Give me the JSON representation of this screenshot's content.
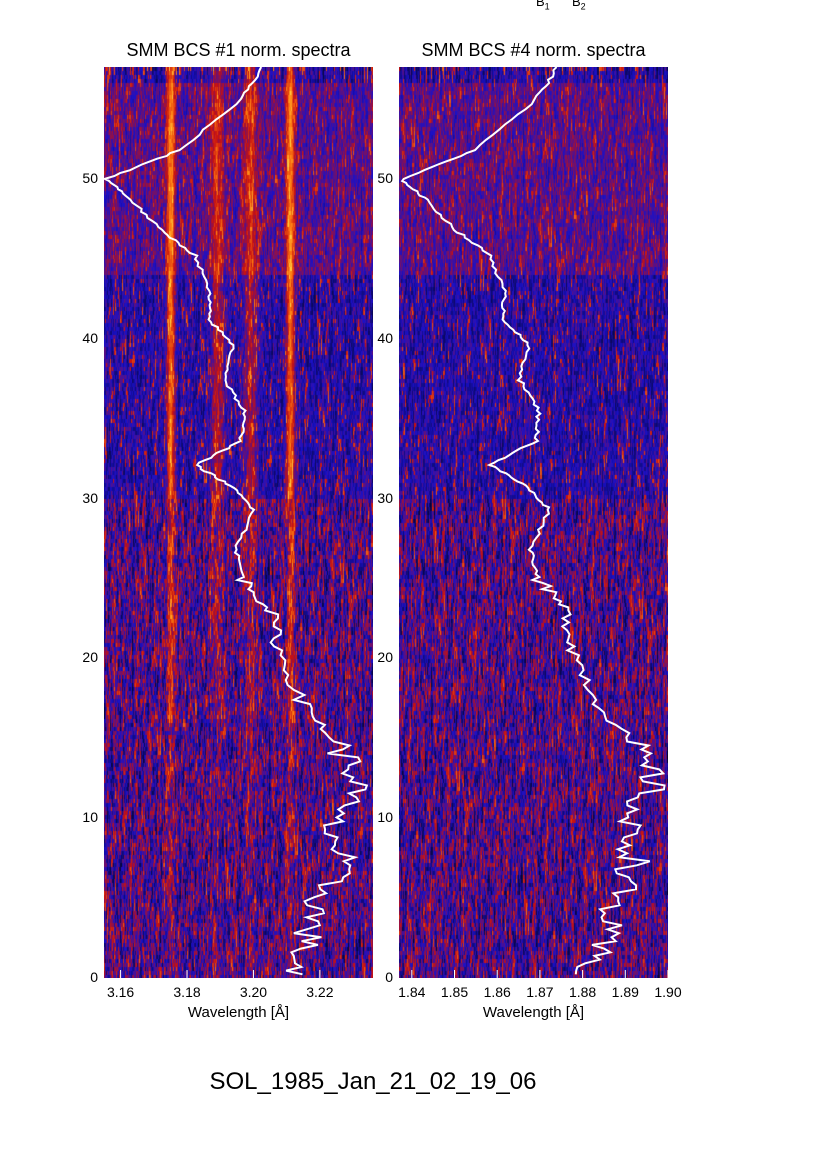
{
  "top_labels": [
    "B",
    "B"
  ],
  "top_label_subs": [
    "1",
    "2"
  ],
  "bottom_title": "SOL_1985_Jan_21_02_19_06",
  "chart_data": [
    {
      "type": "heatmap",
      "title": "SMM BCS #1 norm. spectra",
      "xlabel": "Wavelength [Å]",
      "ylabel": "",
      "xlim": [
        3.155,
        3.236
      ],
      "ylim": [
        0,
        57
      ],
      "xticks": [
        "3.16",
        "3.18",
        "3.20",
        "3.22"
      ],
      "xtick_values": [
        3.16,
        3.18,
        3.2,
        3.22
      ],
      "yticks": [
        "0",
        "10",
        "20",
        "30",
        "40",
        "50"
      ],
      "ytick_values": [
        0,
        10,
        20,
        30,
        40,
        50
      ],
      "bright_lines": [
        3.175,
        3.189,
        3.199,
        3.211
      ],
      "colormap": [
        "#000000",
        "#1a10c8",
        "#c81010",
        "#ff7a10",
        "#ffd040"
      ]
    },
    {
      "type": "heatmap",
      "title": "SMM BCS #4 norm. spectra",
      "xlabel": "Wavelength [Å]",
      "ylabel": "",
      "xlim": [
        1.837,
        1.9
      ],
      "ylim": [
        0,
        57
      ],
      "xticks": [
        "1.84",
        "1.85",
        "1.86",
        "1.87",
        "1.88",
        "1.89",
        "1.90"
      ],
      "xtick_values": [
        1.84,
        1.85,
        1.86,
        1.87,
        1.88,
        1.89,
        1.9
      ],
      "yticks": [
        "0",
        "10",
        "20",
        "30",
        "40",
        "50"
      ],
      "ytick_values": [
        0,
        10,
        20,
        30,
        40,
        50
      ],
      "bright_lines": [],
      "colormap": [
        "#000000",
        "#1a10c8",
        "#c81010",
        "#ff7a10",
        "#ffd040"
      ]
    }
  ],
  "lightcurve": {
    "color": "#ffffff",
    "time": [
      57,
      55,
      51.8,
      50,
      48.7,
      46.8,
      45.2,
      43,
      41.2,
      39.6,
      37.4,
      35.5,
      33.6,
      32.1,
      30.8,
      29.3,
      26.8,
      24.9,
      23,
      20.5,
      17.4,
      14.8,
      12.3,
      9.8,
      7.3,
      4.8,
      2.3,
      0
    ],
    "normalized_intensity": [
      0.59,
      0.51,
      0.28,
      0.01,
      0.1,
      0.21,
      0.34,
      0.39,
      0.39,
      0.48,
      0.45,
      0.52,
      0.51,
      0.34,
      0.47,
      0.56,
      0.49,
      0.52,
      0.62,
      0.65,
      0.73,
      0.86,
      0.95,
      0.84,
      0.88,
      0.8,
      0.75,
      0.69
    ]
  }
}
